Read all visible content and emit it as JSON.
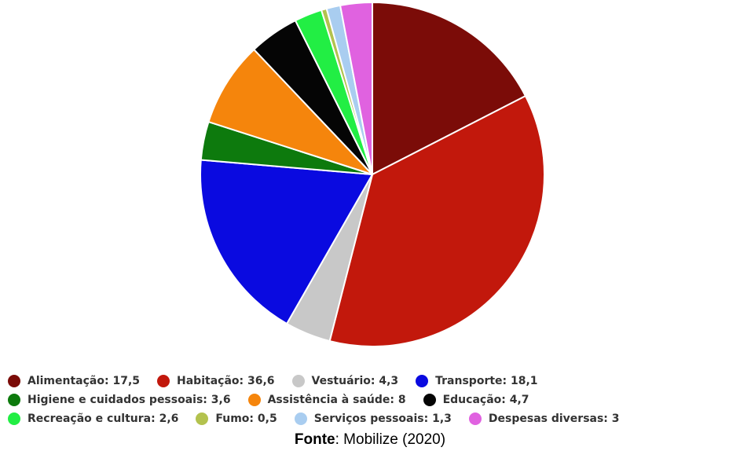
{
  "chart_data": {
    "type": "pie",
    "slices": [
      {
        "label": "Alimentação",
        "value": 17.5,
        "legend_text": "Alimentação: 17,5",
        "color": "#7b0c08"
      },
      {
        "label": "Habitação",
        "value": 36.6,
        "legend_text": "Habitação: 36,6",
        "color": "#c2180c"
      },
      {
        "label": "Vestuário",
        "value": 4.3,
        "legend_text": "Vestuário: 4,3",
        "color": "#c8c8c8"
      },
      {
        "label": "Transporte",
        "value": 18.1,
        "legend_text": "Transporte: 18,1",
        "color": "#0a0ae0"
      },
      {
        "label": "Higiene e cuidados pessoais",
        "value": 3.6,
        "legend_text": "Higiene e cuidados pessoais: 3,6",
        "color": "#0d7a0d"
      },
      {
        "label": "Assistência à saúde",
        "value": 8,
        "legend_text": "Assistência à saúde: 8",
        "color": "#f5850c"
      },
      {
        "label": "Educação",
        "value": 4.7,
        "legend_text": "Educação: 4,7",
        "color": "#050505"
      },
      {
        "label": "Recreação e cultura",
        "value": 2.6,
        "legend_text": "Recreação e cultura: 2,6",
        "color": "#22ee44"
      },
      {
        "label": "Fumo",
        "value": 0.5,
        "legend_text": "Fumo: 0,5",
        "color": "#b3c24e"
      },
      {
        "label": "Serviços pessoais",
        "value": 1.3,
        "legend_text": "Serviços pessoais: 1,3",
        "color": "#a9cdf0"
      },
      {
        "label": "Despesas diversas",
        "value": 3,
        "legend_text": "Despesas diversas: 3",
        "color": "#e062e0"
      }
    ],
    "legend_position": "bottom"
  },
  "source": {
    "prefix": "Fonte",
    "text": ": Mobilize (2020)"
  }
}
